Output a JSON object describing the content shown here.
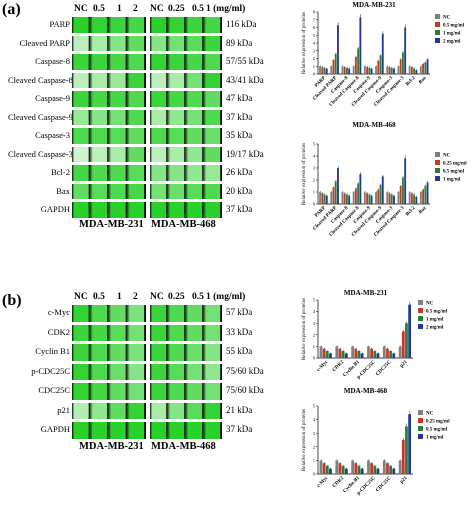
{
  "panels": {
    "a": {
      "tag": "(a)",
      "header_231": [
        "NC",
        "0.5",
        "1",
        "2"
      ],
      "header_468": [
        "NC",
        "0.25",
        "0.5",
        "1 (mg/ml)"
      ],
      "rows": [
        {
          "label": "PARP",
          "kda": "116 kDa"
        },
        {
          "label": "Cleaved PARP",
          "kda": "89 kDa"
        },
        {
          "label": "Caspase-8",
          "kda": "57/55 kDa"
        },
        {
          "label": "Cleaved Caspase-8",
          "kda": "43/41 kDa"
        },
        {
          "label": "Caspase-9",
          "kda": "47 kDa"
        },
        {
          "label": "Cleaved Caspase-9",
          "kda": "37 kDa"
        },
        {
          "label": "Caspase-3",
          "kda": "35 kDa"
        },
        {
          "label": "Cleaved Caspase-3",
          "kda": "19/17 kDa"
        },
        {
          "label": "Bcl-2",
          "kda": "26 kDa"
        },
        {
          "label": "Bax",
          "kda": "20 kDa"
        },
        {
          "label": "GAPDH",
          "kda": "37 kDa"
        }
      ],
      "cell_231": "MDA-MB-231",
      "cell_468": "MDA-MB-468"
    },
    "b": {
      "tag": "(b)",
      "header_231": [
        "NC",
        "0.5",
        "1",
        "2"
      ],
      "header_468": [
        "NC",
        "0.25",
        "0.5",
        "1 (mg/ml)"
      ],
      "rows": [
        {
          "label": "c-Myc",
          "kda": "57 kDa"
        },
        {
          "label": "CDK2",
          "kda": "33 kDa"
        },
        {
          "label": "Cyclin B1",
          "kda": "55 kDa"
        },
        {
          "label": "p-CDC25C",
          "kda": "75/60 kDa"
        },
        {
          "label": "CDC25C",
          "kda": "75/60 kDa"
        },
        {
          "label": "p21",
          "kda": "21 kDa"
        },
        {
          "label": "GAPDH",
          "kda": "37 kDa"
        }
      ],
      "cell_231": "MDA-MB-231",
      "cell_468": "MDA-MB-468"
    }
  },
  "chart_data": [
    {
      "type": "bar",
      "title": "MDA-MB-231",
      "ylabel": "Relative expression of proteins",
      "categories": [
        "PARP",
        "Cleaved PARP",
        "Caspase-8",
        "Cleaved Caspase-8",
        "Caspase-9",
        "Cleaved Caspase-9",
        "Caspase-3",
        "Cleaved Caspase-3",
        "Bcl-2",
        "Bax"
      ],
      "series": [
        {
          "name": "NC",
          "values": [
            1.0,
            1.0,
            1.0,
            1.0,
            1.0,
            1.0,
            1.0,
            1.0,
            1.0,
            1.0
          ]
        },
        {
          "name": "0.5 mg/ml",
          "values": [
            0.9,
            1.8,
            0.9,
            2.2,
            0.9,
            1.7,
            0.9,
            1.9,
            0.9,
            1.3
          ]
        },
        {
          "name": "1 mg/ml",
          "values": [
            0.8,
            2.6,
            0.8,
            3.3,
            0.8,
            2.4,
            0.8,
            2.8,
            0.7,
            1.5
          ]
        },
        {
          "name": "2 mg/ml",
          "values": [
            0.7,
            6.3,
            0.7,
            7.3,
            0.7,
            5.2,
            0.7,
            6.0,
            0.5,
            1.9
          ]
        }
      ],
      "ylim": [
        0,
        8
      ],
      "legend": "right"
    },
    {
      "type": "bar",
      "title": "MDA-MB-468",
      "ylabel": "Relative expression of proteins",
      "categories": [
        "PARP",
        "Cleaved PARP",
        "Caspase-8",
        "Cleaved Caspase-8",
        "Caspase-9",
        "Cleaved Caspase-9",
        "Caspase-3",
        "Cleaved Caspase-3",
        "Bcl-2",
        "Bax"
      ],
      "series": [
        {
          "name": "NC",
          "values": [
            1.0,
            1.0,
            1.0,
            1.0,
            1.0,
            1.0,
            1.0,
            1.0,
            1.0,
            1.0
          ]
        },
        {
          "name": "0.25 mg/ml",
          "values": [
            0.9,
            1.4,
            0.9,
            1.3,
            0.9,
            1.2,
            0.9,
            1.5,
            0.9,
            1.2
          ]
        },
        {
          "name": "0.5 mg/ml",
          "values": [
            0.8,
            1.9,
            0.8,
            1.7,
            0.8,
            1.6,
            0.8,
            2.2,
            0.8,
            1.5
          ]
        },
        {
          "name": "1 mg/ml",
          "values": [
            0.7,
            3.0,
            0.7,
            2.5,
            0.7,
            2.3,
            0.7,
            3.8,
            0.6,
            1.8
          ]
        }
      ],
      "ylim": [
        0,
        5
      ],
      "legend": "right"
    },
    {
      "type": "bar",
      "title": "MDA-MB-231",
      "ylabel": "Relative expression of proteins",
      "categories": [
        "c-Myc",
        "CDK2",
        "Cyclin B1",
        "p-CDC25C",
        "CDC25C",
        "p21"
      ],
      "series": [
        {
          "name": "NC",
          "values": [
            1.0,
            1.0,
            1.0,
            1.0,
            1.0,
            1.0
          ]
        },
        {
          "name": "0.5 mg/ml",
          "values": [
            0.8,
            0.8,
            0.8,
            0.8,
            0.8,
            2.3
          ]
        },
        {
          "name": "1 mg/ml",
          "values": [
            0.6,
            0.6,
            0.6,
            0.6,
            0.6,
            3.0
          ]
        },
        {
          "name": "2 mg/ml",
          "values": [
            0.4,
            0.4,
            0.4,
            0.4,
            0.4,
            4.6
          ]
        }
      ],
      "ylim": [
        0,
        5
      ],
      "legend": "right"
    },
    {
      "type": "bar",
      "title": "MDA-MB-468",
      "ylabel": "Relative expression of proteins",
      "categories": [
        "c-Myc",
        "CDK2",
        "Cyclin B1",
        "p-CDC25C",
        "CDC25C",
        "p21"
      ],
      "series": [
        {
          "name": "NC",
          "values": [
            1.0,
            1.0,
            1.0,
            1.0,
            1.0,
            1.0
          ]
        },
        {
          "name": "0.25 mg/ml",
          "values": [
            0.8,
            0.8,
            0.8,
            0.8,
            0.8,
            2.5
          ]
        },
        {
          "name": "0.5 mg/ml",
          "values": [
            0.6,
            0.6,
            0.6,
            0.6,
            0.6,
            3.5
          ]
        },
        {
          "name": "1 mg/ml",
          "values": [
            0.4,
            0.4,
            0.4,
            0.4,
            0.4,
            4.4
          ]
        }
      ],
      "ylim": [
        0,
        5
      ],
      "legend": "right"
    }
  ],
  "colors": {
    "NC": "#7f7f7f",
    "s1": "#c0392b",
    "s2": "#2e7d32",
    "s3": "#1f3a93",
    "blot_band": "#2bd12b"
  }
}
